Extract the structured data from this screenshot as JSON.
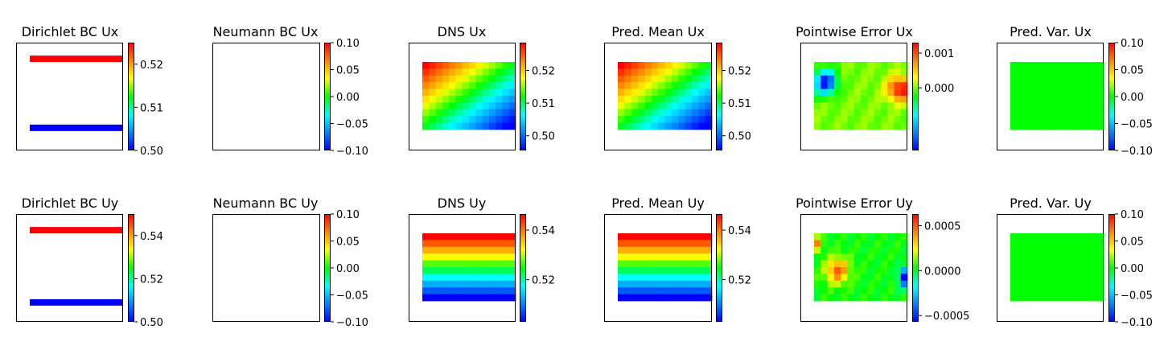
{
  "chart_data": [
    {
      "type": "heatmap",
      "title": "Dirichlet BC Ux",
      "colorbar": {
        "range": [
          0.5,
          0.525
        ],
        "ticks": [
          0.5,
          0.51,
          0.52
        ],
        "tick_labels": [
          "0.50",
          "0.51",
          "0.52"
        ]
      },
      "field": "dirichlet_top_high_bottom_low"
    },
    {
      "type": "heatmap",
      "title": "Neumann BC Ux",
      "colorbar": {
        "range": [
          -0.1,
          0.1
        ],
        "ticks": [
          -0.1,
          -0.05,
          0,
          0.05,
          0.1
        ],
        "tick_labels": [
          "−0.10",
          "−0.05",
          "0.00",
          "0.05",
          "0.10"
        ]
      },
      "field": "empty"
    },
    {
      "type": "heatmap",
      "title": "DNS Ux",
      "colorbar": {
        "range": [
          0.4955,
          0.5285
        ],
        "ticks": [
          0.5,
          0.51,
          0.52
        ],
        "tick_labels": [
          "0.50",
          "0.51",
          "0.52"
        ]
      },
      "field": "diagonal_gradient"
    },
    {
      "type": "heatmap",
      "title": "Pred. Mean Ux",
      "colorbar": {
        "range": [
          0.4955,
          0.5285
        ],
        "ticks": [
          0.5,
          0.51,
          0.52
        ],
        "tick_labels": [
          "0.50",
          "0.51",
          "0.52"
        ]
      },
      "field": "diagonal_gradient"
    },
    {
      "type": "heatmap",
      "title": "Pointwise Error Ux",
      "colorbar": {
        "range": [
          -0.0018,
          0.0013
        ],
        "ticks": [
          0,
          0.001
        ],
        "tick_labels": [
          "0.000",
          "0.001"
        ]
      },
      "field": "error_ux"
    },
    {
      "type": "heatmap",
      "title": "Pred. Var. Ux",
      "colorbar": {
        "range": [
          -0.1,
          0.1
        ],
        "ticks": [
          -0.1,
          -0.05,
          0,
          0.05,
          0.1
        ],
        "tick_labels": [
          "−0.10",
          "−0.05",
          "0.00",
          "0.05",
          "0.10"
        ]
      },
      "field": "constant_zero"
    },
    {
      "type": "heatmap",
      "title": "Dirichlet BC Uy",
      "colorbar": {
        "range": [
          0.5,
          0.55
        ],
        "ticks": [
          0.5,
          0.52,
          0.54
        ],
        "tick_labels": [
          "0.50",
          "0.52",
          "0.54"
        ]
      },
      "field": "dirichlet_top_high_bottom_low"
    },
    {
      "type": "heatmap",
      "title": "Neumann BC Uy",
      "colorbar": {
        "range": [
          -0.1,
          0.1
        ],
        "ticks": [
          -0.1,
          -0.05,
          0,
          0.05,
          0.1
        ],
        "tick_labels": [
          "−0.10",
          "−0.05",
          "0.00",
          "0.05",
          "0.10"
        ]
      },
      "field": "empty"
    },
    {
      "type": "heatmap",
      "title": "DNS Uy",
      "colorbar": {
        "range": [
          0.503,
          0.5465
        ],
        "ticks": [
          0.52,
          0.54
        ],
        "tick_labels": [
          "0.52",
          "0.54"
        ]
      },
      "field": "vertical_gradient"
    },
    {
      "type": "heatmap",
      "title": "Pred. Mean Uy",
      "colorbar": {
        "range": [
          0.503,
          0.5465
        ],
        "ticks": [
          0.52,
          0.54
        ],
        "tick_labels": [
          "0.52",
          "0.54"
        ]
      },
      "field": "vertical_gradient"
    },
    {
      "type": "heatmap",
      "title": "Pointwise Error Uy",
      "colorbar": {
        "range": [
          -0.00057,
          0.00063
        ],
        "ticks": [
          -0.0005,
          0,
          0.0005
        ],
        "tick_labels": [
          "−0.0005",
          "0.0000",
          "0.0005"
        ]
      },
      "field": "error_uy"
    },
    {
      "type": "heatmap",
      "title": "Pred. Var. Uy",
      "colorbar": {
        "range": [
          -0.1,
          0.1
        ],
        "ticks": [
          -0.1,
          -0.05,
          0,
          0.05,
          0.1
        ],
        "tick_labels": [
          "−0.10",
          "−0.05",
          "0.00",
          "0.05",
          "0.10"
        ]
      },
      "field": "constant_zero"
    }
  ],
  "colors": {
    "colormap": "jet-like",
    "dirichlet_high": "#ff0000",
    "dirichlet_low": "#0000ff",
    "constant_zero": "#00ff00"
  }
}
